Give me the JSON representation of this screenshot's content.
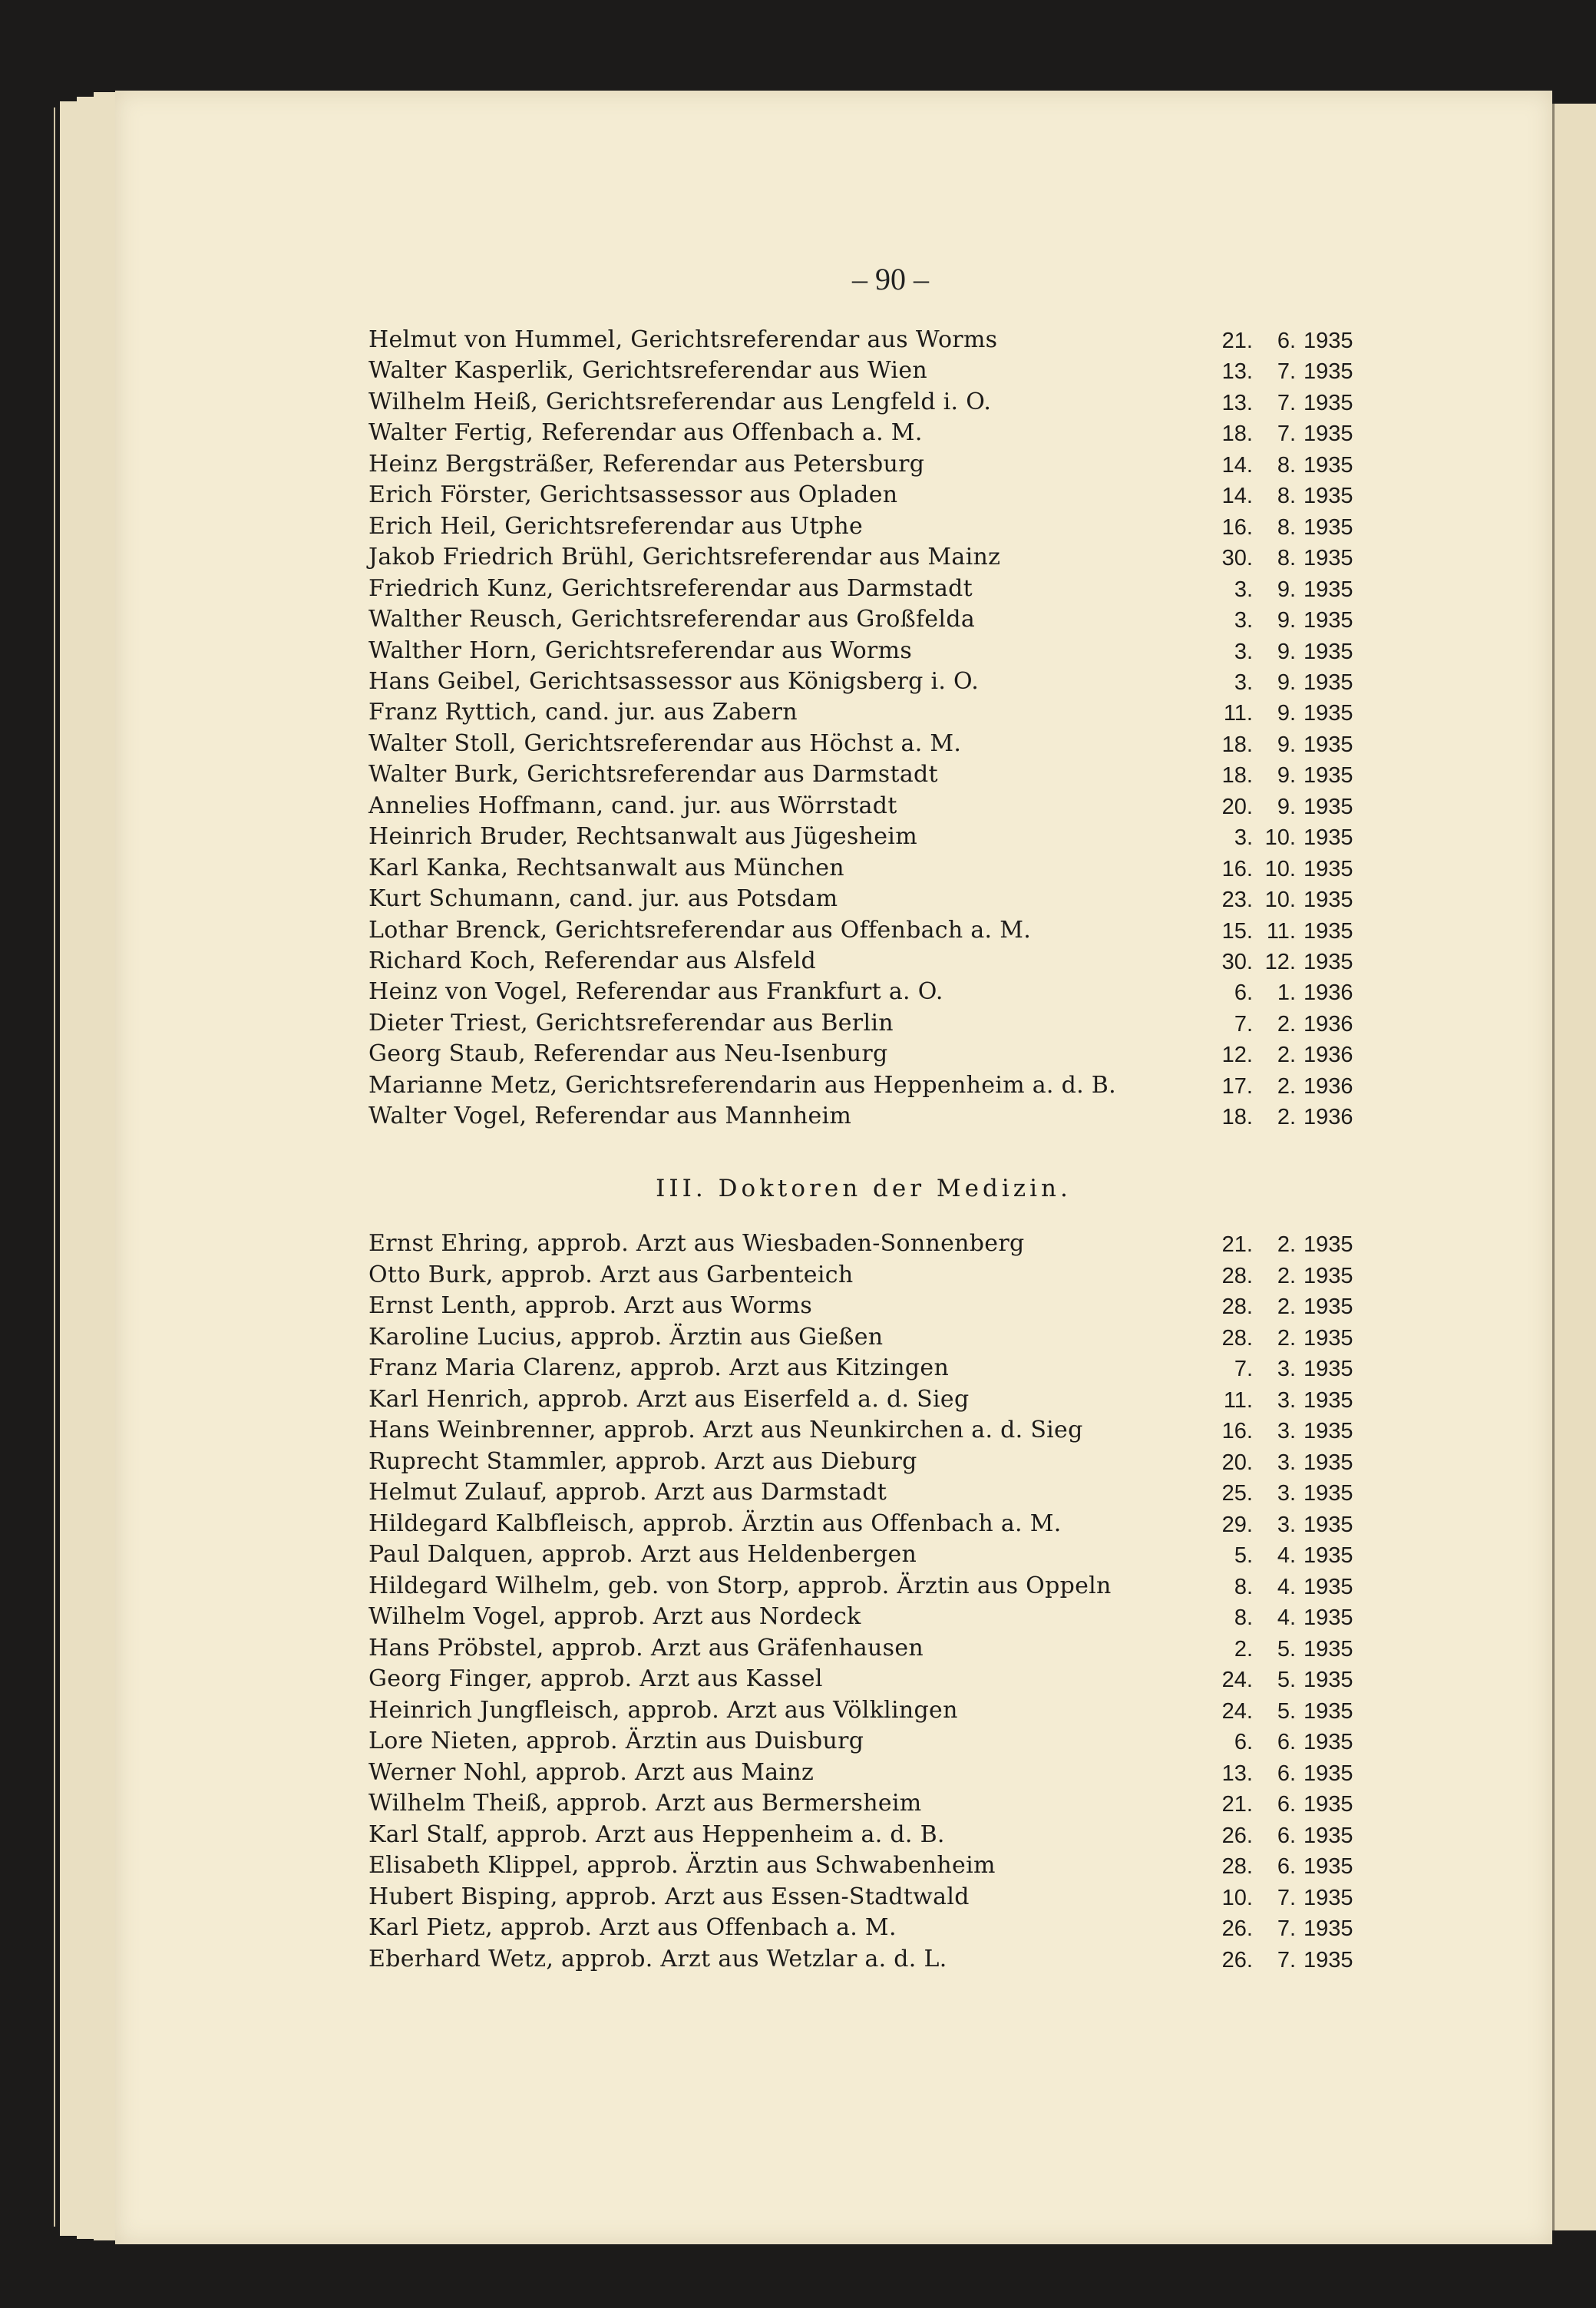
{
  "page_number": "– 90 –",
  "section_1": {
    "entries": [
      {
        "name": "Helmut von Hummel, Gerichtsreferendar aus Worms",
        "d": "21.",
        "m": "6.",
        "y": "1935"
      },
      {
        "name": "Walter Kasperlik, Gerichtsreferendar aus Wien",
        "d": "13.",
        "m": "7.",
        "y": "1935"
      },
      {
        "name": "Wilhelm Heiß, Gerichtsreferendar aus Lengfeld i. O.",
        "d": "13.",
        "m": "7.",
        "y": "1935"
      },
      {
        "name": "Walter Fertig, Referendar aus Offenbach a. M.",
        "d": "18.",
        "m": "7.",
        "y": "1935"
      },
      {
        "name": "Heinz Bergsträßer, Referendar aus Petersburg",
        "d": "14.",
        "m": "8.",
        "y": "1935"
      },
      {
        "name": "Erich Förster, Gerichtsassessor aus Opladen",
        "d": "14.",
        "m": "8.",
        "y": "1935"
      },
      {
        "name": "Erich Heil, Gerichtsreferendar aus Utphe",
        "d": "16.",
        "m": "8.",
        "y": "1935"
      },
      {
        "name": "Jakob Friedrich Brühl, Gerichtsreferendar aus Mainz",
        "d": "30.",
        "m": "8.",
        "y": "1935"
      },
      {
        "name": "Friedrich Kunz, Gerichtsreferendar aus Darmstadt",
        "d": "3.",
        "m": "9.",
        "y": "1935"
      },
      {
        "name": "Walther Reusch, Gerichtsreferendar aus Großfelda",
        "d": "3.",
        "m": "9.",
        "y": "1935"
      },
      {
        "name": "Walther Horn, Gerichtsreferendar aus Worms",
        "d": "3.",
        "m": "9.",
        "y": "1935"
      },
      {
        "name": "Hans Geibel, Gerichtsassessor aus Königsberg i. O.",
        "d": "3.",
        "m": "9.",
        "y": "1935"
      },
      {
        "name": "Franz Ryttich, cand. jur. aus Zabern",
        "d": "11.",
        "m": "9.",
        "y": "1935"
      },
      {
        "name": "Walter Stoll, Gerichtsreferendar aus Höchst a. M.",
        "d": "18.",
        "m": "9.",
        "y": "1935"
      },
      {
        "name": "Walter Burk, Gerichtsreferendar aus Darmstadt",
        "d": "18.",
        "m": "9.",
        "y": "1935"
      },
      {
        "name": "Annelies Hoffmann, cand. jur. aus Wörrstadt",
        "d": "20.",
        "m": "9.",
        "y": "1935"
      },
      {
        "name": "Heinrich Bruder, Rechtsanwalt aus Jügesheim",
        "d": "3.",
        "m": "10.",
        "y": "1935"
      },
      {
        "name": "Karl Kanka, Rechtsanwalt aus München",
        "d": "16.",
        "m": "10.",
        "y": "1935"
      },
      {
        "name": "Kurt Schumann, cand. jur. aus Potsdam",
        "d": "23.",
        "m": "10.",
        "y": "1935"
      },
      {
        "name": "Lothar Brenck, Gerichtsreferendar aus Offenbach a. M.",
        "d": "15.",
        "m": "11.",
        "y": "1935"
      },
      {
        "name": "Richard Koch, Referendar aus Alsfeld",
        "d": "30.",
        "m": "12.",
        "y": "1935"
      },
      {
        "name": "Heinz von Vogel, Referendar aus Frankfurt a. O.",
        "d": "6.",
        "m": "1.",
        "y": "1936"
      },
      {
        "name": "Dieter Triest, Gerichtsreferendar aus Berlin",
        "d": "7.",
        "m": "2.",
        "y": "1936"
      },
      {
        "name": "Georg Staub, Referendar aus Neu-Isenburg",
        "d": "12.",
        "m": "2.",
        "y": "1936"
      },
      {
        "name": "Marianne Metz, Gerichtsreferendarin aus Heppenheim a. d. B.",
        "d": "17.",
        "m": "2.",
        "y": "1936"
      },
      {
        "name": "Walter Vogel, Referendar aus Mannheim",
        "d": "18.",
        "m": "2.",
        "y": "1936"
      }
    ]
  },
  "section_2": {
    "heading": "III. Doktoren der Medizin.",
    "entries": [
      {
        "name": "Ernst Ehring, approb. Arzt aus Wiesbaden-Sonnenberg",
        "d": "21.",
        "m": "2.",
        "y": "1935"
      },
      {
        "name": "Otto Burk, approb. Arzt aus Garbenteich",
        "d": "28.",
        "m": "2.",
        "y": "1935"
      },
      {
        "name": "Ernst Lenth, approb. Arzt aus Worms",
        "d": "28.",
        "m": "2.",
        "y": "1935"
      },
      {
        "name": "Karoline Lucius, approb. Ärztin aus Gießen",
        "d": "28.",
        "m": "2.",
        "y": "1935"
      },
      {
        "name": "Franz Maria Clarenz, approb. Arzt aus Kitzingen",
        "d": "7.",
        "m": "3.",
        "y": "1935"
      },
      {
        "name": "Karl Henrich, approb. Arzt aus Eiserfeld a. d. Sieg",
        "d": "11.",
        "m": "3.",
        "y": "1935"
      },
      {
        "name": "Hans Weinbrenner, approb. Arzt aus Neunkirchen a. d. Sieg",
        "d": "16.",
        "m": "3.",
        "y": "1935"
      },
      {
        "name": "Ruprecht Stammler, approb. Arzt aus Dieburg",
        "d": "20.",
        "m": "3.",
        "y": "1935"
      },
      {
        "name": "Helmut Zulauf, approb. Arzt aus Darmstadt",
        "d": "25.",
        "m": "3.",
        "y": "1935"
      },
      {
        "name": "Hildegard Kalbfleisch, approb. Ärztin aus Offenbach a. M.",
        "d": "29.",
        "m": "3.",
        "y": "1935"
      },
      {
        "name": "Paul Dalquen, approb. Arzt aus Heldenbergen",
        "d": "5.",
        "m": "4.",
        "y": "1935"
      },
      {
        "name": "Hildegard Wilhelm, geb. von Storp, approb. Ärztin aus Oppeln",
        "d": "8.",
        "m": "4.",
        "y": "1935"
      },
      {
        "name": "Wilhelm Vogel, approb. Arzt aus Nordeck",
        "d": "8.",
        "m": "4.",
        "y": "1935"
      },
      {
        "name": "Hans Pröbstel, approb. Arzt aus Gräfenhausen",
        "d": "2.",
        "m": "5.",
        "y": "1935"
      },
      {
        "name": "Georg Finger, approb. Arzt aus Kassel",
        "d": "24.",
        "m": "5.",
        "y": "1935"
      },
      {
        "name": "Heinrich Jungfleisch, approb. Arzt aus Völklingen",
        "d": "24.",
        "m": "5.",
        "y": "1935"
      },
      {
        "name": "Lore Nieten, approb. Ärztin aus Duisburg",
        "d": "6.",
        "m": "6.",
        "y": "1935"
      },
      {
        "name": "Werner Nohl, approb. Arzt aus Mainz",
        "d": "13.",
        "m": "6.",
        "y": "1935"
      },
      {
        "name": "Wilhelm Theiß, approb. Arzt aus Bermersheim",
        "d": "21.",
        "m": "6.",
        "y": "1935"
      },
      {
        "name": "Karl Stalf, approb. Arzt aus Heppenheim a. d. B.",
        "d": "26.",
        "m": "6.",
        "y": "1935"
      },
      {
        "name": "Elisabeth Klippel, approb. Ärztin aus Schwabenheim",
        "d": "28.",
        "m": "6.",
        "y": "1935"
      },
      {
        "name": "Hubert Bisping, approb. Arzt aus Essen-Stadtwald",
        "d": "10.",
        "m": "7.",
        "y": "1935"
      },
      {
        "name": "Karl Pietz, approb. Arzt aus Offenbach a. M.",
        "d": "26.",
        "m": "7.",
        "y": "1935"
      },
      {
        "name": "Eberhard Wetz, approb. Arzt aus Wetzlar a. d. L.",
        "d": "26.",
        "m": "7.",
        "y": "1935"
      }
    ]
  }
}
